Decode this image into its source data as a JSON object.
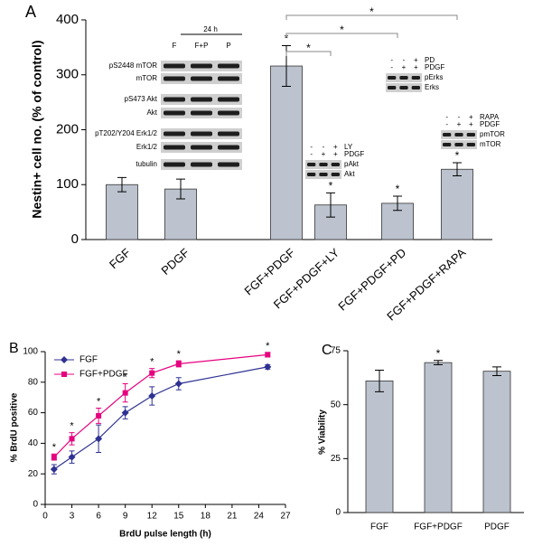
{
  "chart_data": [
    {
      "type": "bar",
      "panel": "A",
      "ylabel": "Nestin+ cell no. (% of control)",
      "categories": [
        "FGF",
        "PDGF",
        "FGF+PDGF",
        "FGF+PDGF+LY",
        "FGF+PDGF+PD",
        "FGF+PDGF+RAPA"
      ],
      "values": [
        100,
        92,
        316,
        63,
        66,
        128
      ],
      "errors": [
        13,
        18,
        37,
        22,
        13,
        12
      ],
      "markers": [
        null,
        null,
        "*",
        "*",
        "*",
        "*"
      ],
      "brackets": [
        {
          "from": "FGF+PDGF",
          "to": "FGF+PDGF+LY",
          "label": "*"
        },
        {
          "from": "FGF+PDGF",
          "to": "FGF+PDGF+PD",
          "label": "*"
        },
        {
          "from": "FGF+PDGF",
          "to": "FGF+PDGF+RAPA",
          "label": "*"
        }
      ],
      "ylim": [
        0,
        400
      ],
      "yticks": [
        0,
        100,
        200,
        300,
        400
      ],
      "color": "#bcc3ce",
      "insets": [
        {
          "header": "24 h",
          "lanes": [
            "F",
            "F+P",
            "P"
          ],
          "bands": [
            "pS2448 mTOR",
            "mTOR",
            "pS473 Akt",
            "Akt",
            "pT202/Y204 Erk1/2",
            "Erk1/2",
            "tubulin"
          ]
        },
        {
          "conditions": [
            {
              "name": "LY",
              "signs": [
                "-",
                "-",
                "+"
              ]
            },
            {
              "name": "PDGF",
              "signs": [
                "-",
                "+",
                "+"
              ]
            }
          ],
          "bands": [
            "pAkt",
            "Akt"
          ]
        },
        {
          "conditions": [
            {
              "name": "PD",
              "signs": [
                "-",
                "-",
                "+"
              ]
            },
            {
              "name": "PDGF",
              "signs": [
                "-",
                "+",
                "+"
              ]
            }
          ],
          "bands": [
            "pErks",
            "Erks"
          ]
        },
        {
          "conditions": [
            {
              "name": "RAPA",
              "signs": [
                "-",
                "-",
                "+"
              ]
            },
            {
              "name": "PDGF",
              "signs": [
                "-",
                "+",
                "+"
              ]
            }
          ],
          "bands": [
            "pmTOR",
            "mTOR"
          ]
        }
      ]
    },
    {
      "type": "line",
      "panel": "B",
      "xlabel": "BrdU pulse length (h)",
      "ylabel": "% BrdU positive",
      "x": [
        1,
        3,
        6,
        9,
        12,
        15,
        25
      ],
      "series": [
        {
          "name": "FGF",
          "color": "#2e3192",
          "marker": "diamond",
          "values": [
            23,
            31,
            43,
            60,
            71,
            79,
            90
          ],
          "errors": [
            3,
            4,
            9,
            4,
            6,
            4,
            1.5
          ]
        },
        {
          "name": "FGF+PDGF",
          "color": "#e6007e",
          "marker": "square",
          "values": [
            31,
            43,
            58,
            73,
            86,
            92,
            98
          ],
          "errors": [
            2,
            4,
            5,
            6,
            3,
            2,
            1.5
          ]
        }
      ],
      "markers": [
        "*",
        "*",
        "*",
        "*",
        "*",
        "*",
        "*"
      ],
      "xlim": [
        0,
        27
      ],
      "xticks": [
        0,
        3,
        6,
        9,
        12,
        15,
        18,
        21,
        24,
        27
      ],
      "ylim": [
        0,
        100
      ],
      "yticks": [
        0,
        20,
        40,
        60,
        80,
        100
      ],
      "legend": "upper left"
    },
    {
      "type": "bar",
      "panel": "C",
      "ylabel": "% Viability",
      "categories": [
        "FGF",
        "FGF+PDGF",
        "PDGF"
      ],
      "values": [
        61,
        69.5,
        65.5
      ],
      "errors": [
        5,
        1,
        2
      ],
      "markers": [
        null,
        "*",
        null
      ],
      "ylim": [
        0,
        75
      ],
      "yticks": [
        0,
        25,
        50,
        75
      ],
      "color": "#bcc3ce"
    }
  ]
}
